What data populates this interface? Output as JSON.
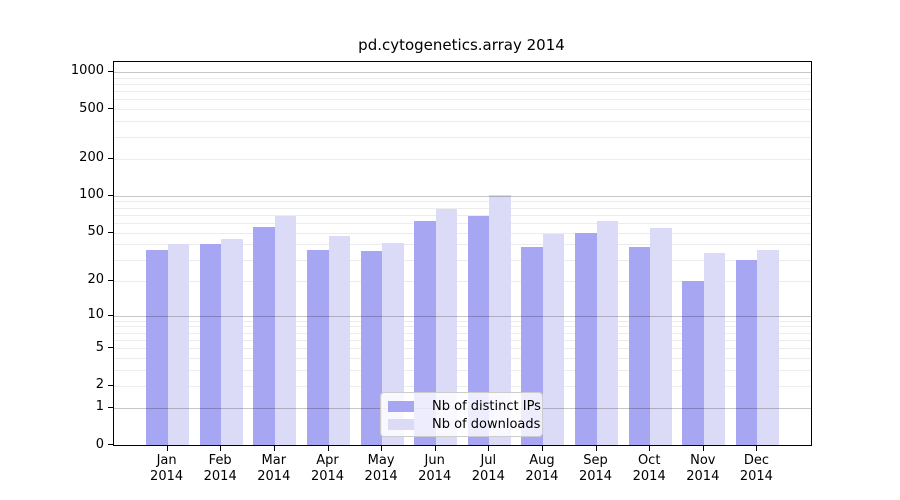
{
  "title": "pd.cytogenetics.array 2014",
  "year": "2014",
  "months": [
    "Jan",
    "Feb",
    "Mar",
    "Apr",
    "May",
    "Jun",
    "Jul",
    "Aug",
    "Sep",
    "Oct",
    "Nov",
    "Dec"
  ],
  "legend": {
    "items": [
      {
        "label": "Nb of distinct IPs",
        "color": "#a6a6f3"
      },
      {
        "label": "Nb of downloads",
        "color": "#dbdbf8"
      }
    ]
  },
  "chart_data": {
    "type": "bar",
    "title": "pd.cytogenetics.array 2014",
    "categories": [
      "Jan 2014",
      "Feb 2014",
      "Mar 2014",
      "Apr 2014",
      "May 2014",
      "Jun 2014",
      "Jul 2014",
      "Aug 2014",
      "Sep 2014",
      "Oct 2014",
      "Nov 2014",
      "Dec 2014"
    ],
    "series": [
      {
        "name": "Nb of distinct IPs",
        "color": "#a6a6f3",
        "values": [
          36,
          40,
          56,
          36,
          35,
          62,
          68,
          38,
          50,
          38,
          20,
          30
        ]
      },
      {
        "name": "Nb of downloads",
        "color": "#dbdbf8",
        "values": [
          40,
          44,
          68,
          47,
          41,
          78,
          101,
          49,
          62,
          55,
          34,
          36
        ]
      }
    ],
    "yscale": "log1p",
    "yticks": [
      0,
      1,
      2,
      5,
      10,
      20,
      50,
      100,
      200,
      500,
      1000
    ],
    "ylim": [
      0,
      1200
    ],
    "xlabel": "",
    "ylabel": "",
    "grid": true,
    "legend_position": "lower center"
  }
}
